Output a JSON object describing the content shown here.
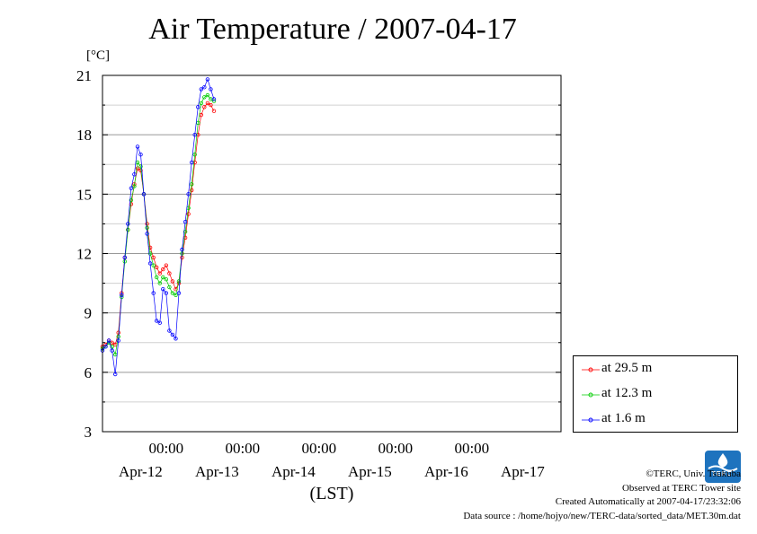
{
  "chart_data": {
    "type": "line",
    "title": "Air Temperature / 2007-04-17",
    "ylabel": "[°C]",
    "xlabel": "(LST)",
    "ylim": [
      3,
      21
    ],
    "yticks": [
      3,
      6,
      9,
      12,
      15,
      18,
      21
    ],
    "xlim": [
      "2007-04-11 04:00",
      "2007-04-17 04:00"
    ],
    "x_time_labels": [
      "00:00",
      "00:00",
      "00:00",
      "00:00",
      "00:00"
    ],
    "x_date_labels": [
      "Apr-12",
      "Apr-13",
      "Apr-14",
      "Apr-15",
      "Apr-16",
      "Apr-17"
    ],
    "grid": true,
    "legend_position": "lower-right outside",
    "series": [
      {
        "name": "at 29.5 m",
        "color": "#ff0000",
        "x": [
          "2007-04-11 04:00",
          "2007-04-11 05:00",
          "2007-04-11 06:00",
          "2007-04-11 07:00",
          "2007-04-11 08:00",
          "2007-04-11 09:00",
          "2007-04-11 10:00",
          "2007-04-11 11:00",
          "2007-04-11 12:00",
          "2007-04-11 13:00",
          "2007-04-11 14:00",
          "2007-04-11 15:00",
          "2007-04-11 16:00",
          "2007-04-11 17:00",
          "2007-04-11 18:00",
          "2007-04-11 19:00",
          "2007-04-11 20:00",
          "2007-04-11 21:00",
          "2007-04-11 22:00",
          "2007-04-11 23:00",
          "2007-04-12 00:00",
          "2007-04-12 01:00",
          "2007-04-12 02:00",
          "2007-04-12 03:00",
          "2007-04-12 04:00",
          "2007-04-12 05:00",
          "2007-04-12 06:00",
          "2007-04-12 07:00",
          "2007-04-12 08:00",
          "2007-04-12 09:00",
          "2007-04-12 10:00",
          "2007-04-12 11:00",
          "2007-04-12 12:00",
          "2007-04-12 13:00",
          "2007-04-12 14:00",
          "2007-04-12 15:00",
          "2007-04-12 16:00",
          "2007-04-12 17:00",
          "2007-04-12 18:00"
        ],
        "y": [
          7.3,
          7.4,
          7.6,
          7.5,
          7.4,
          8.0,
          10.0,
          11.8,
          13.2,
          14.5,
          15.5,
          16.3,
          16.2,
          15.0,
          13.5,
          12.3,
          11.8,
          11.3,
          11.0,
          11.2,
          11.4,
          11.0,
          10.6,
          10.2,
          10.5,
          11.8,
          12.8,
          14.0,
          15.2,
          16.6,
          18.0,
          19.0,
          19.4,
          19.6,
          19.5,
          19.2,
          null,
          null,
          null
        ]
      },
      {
        "name": "at 12.3 m",
        "color": "#00cc00",
        "x": [
          "2007-04-11 04:00",
          "2007-04-11 05:00",
          "2007-04-11 06:00",
          "2007-04-11 07:00",
          "2007-04-11 08:00",
          "2007-04-11 09:00",
          "2007-04-11 10:00",
          "2007-04-11 11:00",
          "2007-04-11 12:00",
          "2007-04-11 13:00",
          "2007-04-11 14:00",
          "2007-04-11 15:00",
          "2007-04-11 16:00",
          "2007-04-11 17:00",
          "2007-04-11 18:00",
          "2007-04-11 19:00",
          "2007-04-11 20:00",
          "2007-04-11 21:00",
          "2007-04-11 22:00",
          "2007-04-11 23:00",
          "2007-04-12 00:00",
          "2007-04-12 01:00",
          "2007-04-12 02:00",
          "2007-04-12 03:00",
          "2007-04-12 04:00",
          "2007-04-12 05:00",
          "2007-04-12 06:00",
          "2007-04-12 07:00",
          "2007-04-12 08:00",
          "2007-04-12 09:00",
          "2007-04-12 10:00",
          "2007-04-12 11:00",
          "2007-04-12 12:00",
          "2007-04-12 13:00",
          "2007-04-12 14:00",
          "2007-04-12 15:00"
        ],
        "y": [
          7.2,
          7.3,
          7.5,
          7.3,
          6.9,
          7.8,
          9.8,
          11.6,
          13.2,
          14.7,
          15.4,
          16.6,
          16.4,
          15.0,
          13.3,
          12.0,
          11.4,
          10.8,
          10.5,
          10.8,
          10.7,
          10.3,
          10.0,
          9.9,
          10.6,
          12.0,
          13.1,
          14.3,
          15.5,
          17.0,
          18.6,
          19.6,
          19.9,
          20.0,
          19.8,
          19.7
        ]
      },
      {
        "name": "at 1.6 m",
        "color": "#0000ff",
        "x": [
          "2007-04-11 04:00",
          "2007-04-11 05:00",
          "2007-04-11 06:00",
          "2007-04-11 07:00",
          "2007-04-11 08:00",
          "2007-04-11 09:00",
          "2007-04-11 10:00",
          "2007-04-11 11:00",
          "2007-04-11 12:00",
          "2007-04-11 13:00",
          "2007-04-11 14:00",
          "2007-04-11 15:00",
          "2007-04-11 16:00",
          "2007-04-11 17:00",
          "2007-04-11 18:00",
          "2007-04-11 19:00",
          "2007-04-11 20:00",
          "2007-04-11 21:00",
          "2007-04-11 22:00",
          "2007-04-11 23:00",
          "2007-04-12 00:00",
          "2007-04-12 01:00",
          "2007-04-12 02:00",
          "2007-04-12 03:00",
          "2007-04-12 04:00",
          "2007-04-12 05:00",
          "2007-04-12 06:00",
          "2007-04-12 07:00",
          "2007-04-12 08:00",
          "2007-04-12 09:00",
          "2007-04-12 10:00",
          "2007-04-12 11:00",
          "2007-04-12 12:00",
          "2007-04-12 13:00",
          "2007-04-12 14:00",
          "2007-04-12 15:00"
        ],
        "y": [
          7.1,
          7.3,
          7.6,
          7.1,
          5.9,
          7.6,
          9.9,
          11.8,
          13.5,
          15.3,
          16.0,
          17.4,
          17.0,
          15.0,
          13.0,
          11.5,
          10.0,
          8.6,
          8.5,
          10.2,
          10.0,
          8.1,
          7.9,
          7.7,
          10.0,
          12.2,
          13.6,
          15.0,
          16.6,
          18.0,
          19.4,
          20.3,
          20.4,
          20.8,
          20.3,
          19.8
        ]
      }
    ]
  },
  "legend": {
    "items": [
      {
        "label": "at 29.5 m",
        "color": "#ff0000"
      },
      {
        "label": "at 12.3 m",
        "color": "#00cc00"
      },
      {
        "label": "at 1.6 m",
        "color": "#0000ff"
      }
    ]
  },
  "footer": {
    "copyright": "©TERC, Univ. Tsukuba",
    "observed": "Observed at TERC Tower site",
    "created": "Created Automatically at 2007-04-17/23:32:06",
    "source": "Data source : /home/hojyo/new/TERC-data/sorted_data/MET.30m.dat"
  },
  "logo": {
    "text": "TERC",
    "color": "#1e73be"
  }
}
